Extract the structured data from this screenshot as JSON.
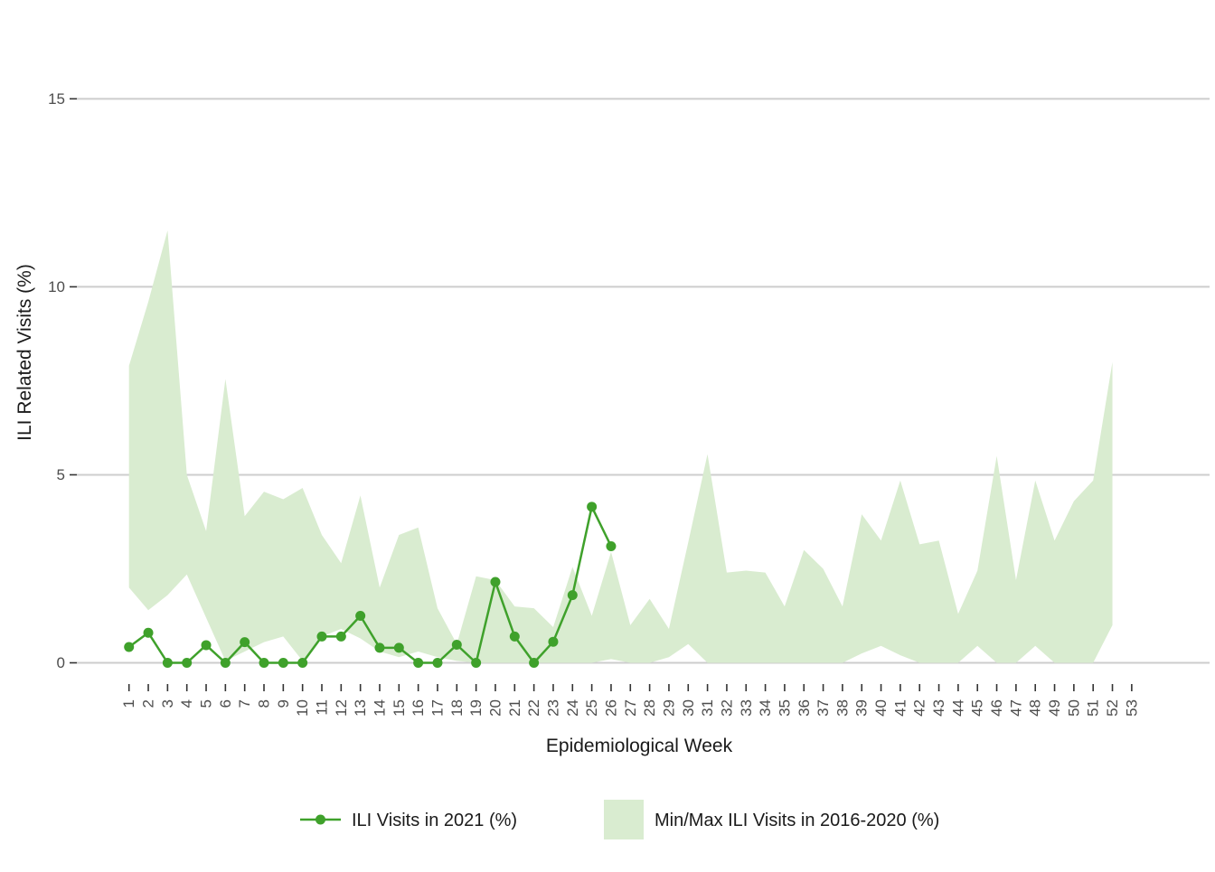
{
  "chart_data": {
    "type": "line",
    "title": "",
    "xlabel": "Epidemiological Week",
    "ylabel": "ILI Related Visits (%)",
    "x_ticks": [
      1,
      2,
      3,
      4,
      5,
      6,
      7,
      8,
      9,
      10,
      11,
      12,
      13,
      14,
      15,
      16,
      17,
      18,
      19,
      20,
      21,
      22,
      23,
      24,
      25,
      26,
      27,
      28,
      29,
      30,
      31,
      32,
      33,
      34,
      35,
      36,
      37,
      38,
      39,
      40,
      41,
      42,
      43,
      44,
      45,
      46,
      47,
      48,
      49,
      50,
      51,
      52,
      53
    ],
    "y_ticks": [
      0,
      5,
      10,
      15
    ],
    "ylim": [
      0,
      15
    ],
    "grid": "horizontal-only",
    "legend_position": "bottom",
    "series": [
      {
        "name": "ILI Visits in 2021 (%)",
        "kind": "line-with-points",
        "color": "#3fa12b",
        "weeks": [
          1,
          2,
          3,
          4,
          5,
          6,
          7,
          8,
          9,
          10,
          11,
          12,
          13,
          14,
          15,
          16,
          17,
          18,
          19,
          20,
          21,
          22,
          23,
          24,
          25,
          26
        ],
        "values": [
          0.42,
          0.8,
          0,
          0,
          0.47,
          0,
          0.55,
          0,
          0,
          0,
          0.7,
          0.7,
          1.25,
          0.4,
          0.4,
          0,
          0,
          0.48,
          0,
          2.15,
          0.7,
          0,
          0.56,
          1.8,
          4.15,
          3.1
        ]
      },
      {
        "name": "Min/Max ILI Visits in 2016-2020 (%)",
        "kind": "ribbon",
        "color": "#d9ecd0",
        "weeks": [
          1,
          2,
          3,
          4,
          5,
          6,
          7,
          8,
          9,
          10,
          11,
          12,
          13,
          14,
          15,
          16,
          17,
          18,
          19,
          20,
          21,
          22,
          23,
          24,
          25,
          26,
          27,
          28,
          29,
          30,
          31,
          32,
          33,
          34,
          35,
          36,
          37,
          38,
          39,
          40,
          41,
          42,
          43,
          44,
          45,
          46,
          47,
          48,
          49,
          50,
          51,
          52
        ],
        "max": [
          7.9,
          9.6,
          11.5,
          5.0,
          3.5,
          7.55,
          3.9,
          4.55,
          4.35,
          4.65,
          3.4,
          2.65,
          4.45,
          2.0,
          3.4,
          3.6,
          1.45,
          0.5,
          2.3,
          2.2,
          1.5,
          1.45,
          0.95,
          2.55,
          1.25,
          2.95,
          1.0,
          1.7,
          0.9,
          3.2,
          5.55,
          2.4,
          2.45,
          2.4,
          1.5,
          3.0,
          2.5,
          1.5,
          3.95,
          3.25,
          4.85,
          3.15,
          3.25,
          1.3,
          2.45,
          5.5,
          2.2,
          4.85,
          3.25,
          4.3,
          4.85,
          8.0
        ],
        "min": [
          2.0,
          1.4,
          1.8,
          2.35,
          1.2,
          0.05,
          0.3,
          0.55,
          0.7,
          0.05,
          0.7,
          0.9,
          0.65,
          0.3,
          0.15,
          0.3,
          0.15,
          0.05,
          0,
          0,
          0,
          0,
          0,
          0,
          0,
          0.1,
          0,
          0,
          0.15,
          0.5,
          0,
          0,
          0,
          0,
          0,
          0,
          0,
          0,
          0.25,
          0.45,
          0.2,
          0,
          0,
          0,
          0.45,
          0,
          0,
          0.45,
          0,
          0,
          0,
          1.0
        ]
      }
    ],
    "colors": {
      "line": "#3fa12b",
      "ribbon_fill": "#d9ecd0",
      "gridline": "#cdcdcd",
      "tick_mark": "#333333",
      "tick_text": "#4d4d4d",
      "axis_title_text": "#1a1a1a",
      "background": "#ffffff"
    },
    "legend": [
      {
        "label": "ILI Visits in 2021 (%)",
        "marker": "line-dot"
      },
      {
        "label": "Min/Max ILI Visits in 2016-2020 (%)",
        "marker": "filled-square"
      }
    ]
  }
}
